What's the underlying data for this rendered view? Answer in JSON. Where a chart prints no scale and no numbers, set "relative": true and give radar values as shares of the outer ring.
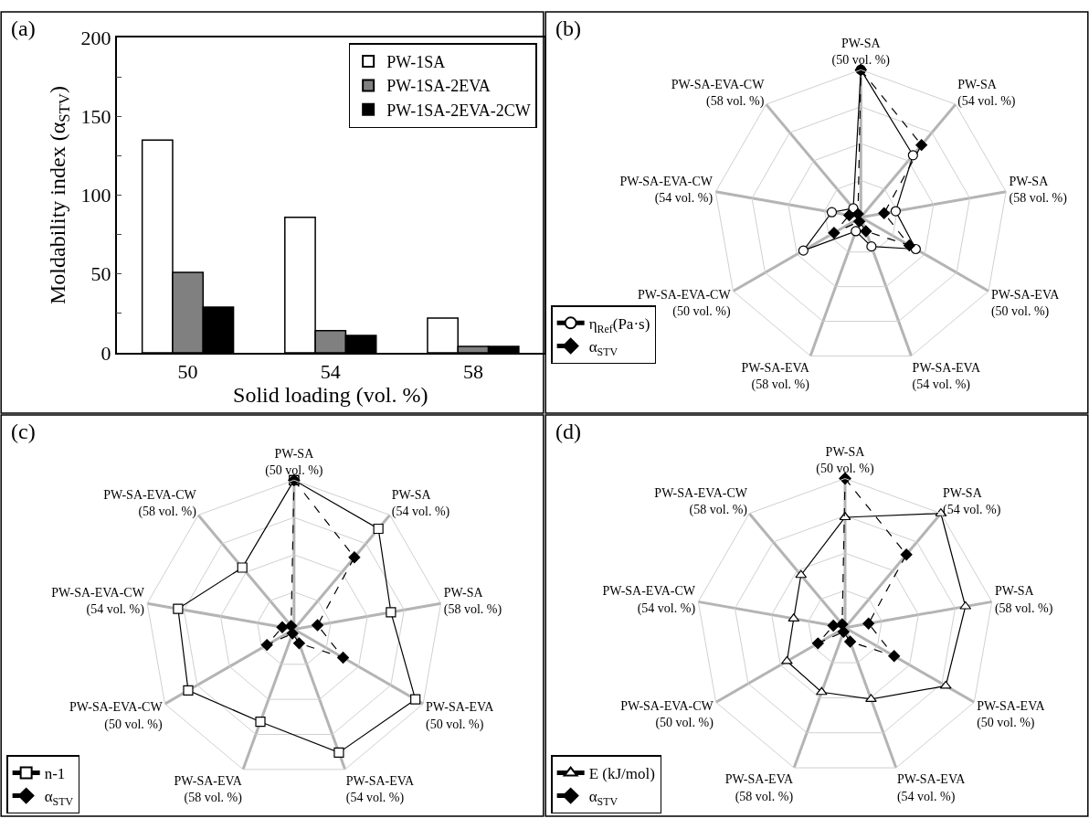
{
  "chart_data": [
    {
      "type": "bar",
      "title": "(a)",
      "xlabel": "Solid loading (vol. %)",
      "ylabel": "Moldability index (α$_{STV}$)",
      "categories": [
        "50",
        "54",
        "58"
      ],
      "series": [
        {
          "name": "PW-1SA",
          "color": "#ffffff",
          "values": [
            135,
            86,
            22
          ]
        },
        {
          "name": "PW-1SA-2EVA",
          "color": "#808080",
          "values": [
            51,
            14,
            4
          ]
        },
        {
          "name": "PW-1SA-2EVA-2CW",
          "color": "#000000",
          "values": [
            29,
            11,
            4
          ]
        }
      ],
      "ylim": [
        0,
        200
      ],
      "yticks": [
        0,
        {
          "value": 25,
          "label": null
        },
        50,
        {
          "value": 75,
          "label": null
        },
        100,
        {
          "value": 125,
          "label": null
        },
        150,
        {
          "value": 175,
          "label": null
        },
        200
      ],
      "grid": false,
      "legend": "top right"
    },
    {
      "type": "radar",
      "title": "(b)",
      "relative": true,
      "legend": "bottom left",
      "categories": [
        "PW-SA\n(50 vol. %)",
        "PW-SA\n(54 vol. %)",
        "PW-SA\n(58 vol. %)",
        "PW-SA-EVA\n(50 vol. %)",
        "PW-SA-EVA\n(54 vol. %)",
        "PW-SA-EVA\n(58 vol. %)",
        "PW-SA-EVA-CW\n(50 vol. %)",
        "PW-SA-EVA-CW\n(54 vol. %)",
        "PW-SA-EVA-CW\n(58 vol. %)"
      ],
      "series": [
        {
          "name": "η$_{Ref}$(Pa·s)",
          "color": "#000000",
          "marker": "circle",
          "line_style": "solid",
          "values": [
            1.0,
            0.55,
            0.24,
            0.43,
            0.21,
            0.1,
            0.45,
            0.2,
            0.08
          ]
        },
        {
          "name": "α$_{STV}$",
          "color": "#000000",
          "marker": "diamond",
          "line_style": "dashed",
          "values": [
            1.0,
            0.64,
            0.16,
            0.38,
            0.1,
            0.03,
            0.21,
            0.08,
            0.03
          ]
        }
      ]
    },
    {
      "type": "radar",
      "title": "(c)",
      "relative": true,
      "legend": "bottom left",
      "categories": [
        "PW-SA\n(50 vol. %)",
        "PW-SA\n(54 vol. %)",
        "PW-SA\n(58 vol. %)",
        "PW-SA-EVA\n(50 vol. %)",
        "PW-SA-EVA\n(54 vol. %)",
        "PW-SA-EVA\n(58 vol. %)",
        "PW-SA-EVA-CW\n(50 vol. %)",
        "PW-SA-EVA-CW\n(54 vol. %)",
        "PW-SA-EVA-CW\n(58 vol. %)"
      ],
      "series": [
        {
          "name": "n-1",
          "color": "#000000",
          "marker": "square",
          "line_style": "solid",
          "values": [
            1.0,
            0.88,
            0.66,
            0.94,
            0.88,
            0.66,
            0.82,
            0.79,
            0.54
          ]
        },
        {
          "name": "α$_{STV}$",
          "color": "#000000",
          "marker": "diamond",
          "line_style": "dashed",
          "values": [
            1.0,
            0.63,
            0.16,
            0.38,
            0.1,
            0.03,
            0.21,
            0.08,
            0.03
          ]
        }
      ]
    },
    {
      "type": "radar",
      "title": "(d)",
      "relative": true,
      "legend": "bottom left",
      "categories": [
        "PW-SA\n(50 vol. %)",
        "PW-SA\n(54 vol. %)",
        "PW-SA\n(58 vol. %)",
        "PW-SA-EVA\n(50 vol. %)",
        "PW-SA-EVA\n(54 vol. %)",
        "PW-SA-EVA\n(58 vol. %)",
        "PW-SA-EVA-CW\n(50 vol. %)",
        "PW-SA-EVA-CW\n(54 vol. %)",
        "PW-SA-EVA-CW\n(58 vol. %)"
      ],
      "series": [
        {
          "name": "E (kJ/mol)",
          "color": "#000000",
          "marker": "triangle",
          "line_style": "solid",
          "values": [
            0.74,
            1.0,
            0.82,
            0.78,
            0.51,
            0.46,
            0.45,
            0.35,
            0.46
          ]
        },
        {
          "name": "α$_{STV}$",
          "color": "#000000",
          "marker": "diamond",
          "line_style": "dashed",
          "values": [
            1.0,
            0.64,
            0.16,
            0.38,
            0.1,
            0.03,
            0.21,
            0.08,
            0.03
          ]
        }
      ]
    }
  ]
}
